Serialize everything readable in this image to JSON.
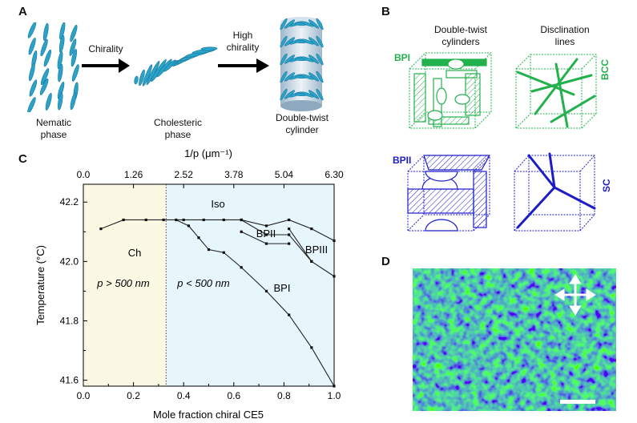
{
  "panels": {
    "a": {
      "label": "A",
      "nematic": [
        "Nematic",
        "phase"
      ],
      "arrow1": "Chirality",
      "cholesteric": [
        "Cholesteric",
        "phase"
      ],
      "arrow2": [
        "High",
        "chirality"
      ],
      "cylinder": [
        "Double-twist",
        "cylinder"
      ],
      "colors": {
        "rod": "#2aa3c9",
        "rod_dark": "#17729a"
      }
    },
    "b": {
      "label": "B",
      "col1": [
        "Double-twist",
        "cylinders"
      ],
      "col2": [
        "Disclination",
        "lines"
      ],
      "row1_label": "BPI",
      "row1_side": "BCC",
      "row2_label": "BPII",
      "row2_side": "SC",
      "colors": {
        "bpi": "#22b14c",
        "bpii": "#1c1cc8"
      }
    },
    "c": {
      "label": "C",
      "top_axis_title": "1/p (μm⁻¹)",
      "region_ch": "Ch",
      "region_ch_cond": "p > 500 nm",
      "region_p_cond": "p < 500 nm",
      "phase_iso": "Iso",
      "phase_bpii": "BPII",
      "phase_bpiii": "BPIII",
      "phase_bpi": "BPI",
      "colors": {
        "ch_region": "#fbf8e4",
        "bp_region": "#e6f6fa"
      }
    },
    "d": {
      "label": "D"
    }
  },
  "chart_data": {
    "type": "line",
    "xlabel": "Mole fraction chiral CE5",
    "ylabel": "Temperature (°C)",
    "x2label": "1/p (μm⁻¹)",
    "xlim": [
      0.0,
      1.0
    ],
    "ylim": [
      41.58,
      42.26
    ],
    "x_ticks": [
      "0.0",
      "0.2",
      "0.4",
      "0.6",
      "0.8",
      "1.0"
    ],
    "y_ticks": [
      "41.6",
      "41.8",
      "42.0",
      "42.2"
    ],
    "x2_ticks": [
      "0.0",
      "1.26",
      "2.52",
      "3.78",
      "5.04",
      "6.30"
    ],
    "boundary_x": 0.33,
    "series": [
      {
        "x": [
          0.07,
          0.16,
          0.25,
          0.32,
          0.4,
          0.48,
          0.56,
          0.63,
          0.73,
          0.82,
          0.91,
          1.0
        ],
        "y": [
          42.11,
          42.14,
          42.14,
          42.14,
          42.14,
          42.14,
          42.14,
          42.14,
          42.12,
          42.14,
          42.11,
          42.07
        ]
      },
      {
        "x": [
          0.63,
          0.73,
          0.82,
          0.91,
          1.0
        ],
        "y": [
          42.14,
          42.09,
          42.09,
          42.0,
          41.95
        ]
      },
      {
        "x": [
          0.63,
          0.73,
          0.82
        ],
        "y": [
          42.1,
          42.06,
          42.06
        ]
      },
      {
        "x": [
          0.82,
          0.91
        ],
        "y": [
          42.11,
          42.0
        ]
      },
      {
        "x": [
          0.37,
          0.42,
          0.46,
          0.5,
          0.56,
          0.63,
          0.73,
          0.82,
          0.91,
          1.0
        ],
        "y": [
          42.14,
          42.12,
          42.08,
          42.04,
          42.03,
          41.98,
          41.9,
          41.82,
          41.71,
          41.58
        ]
      }
    ]
  }
}
